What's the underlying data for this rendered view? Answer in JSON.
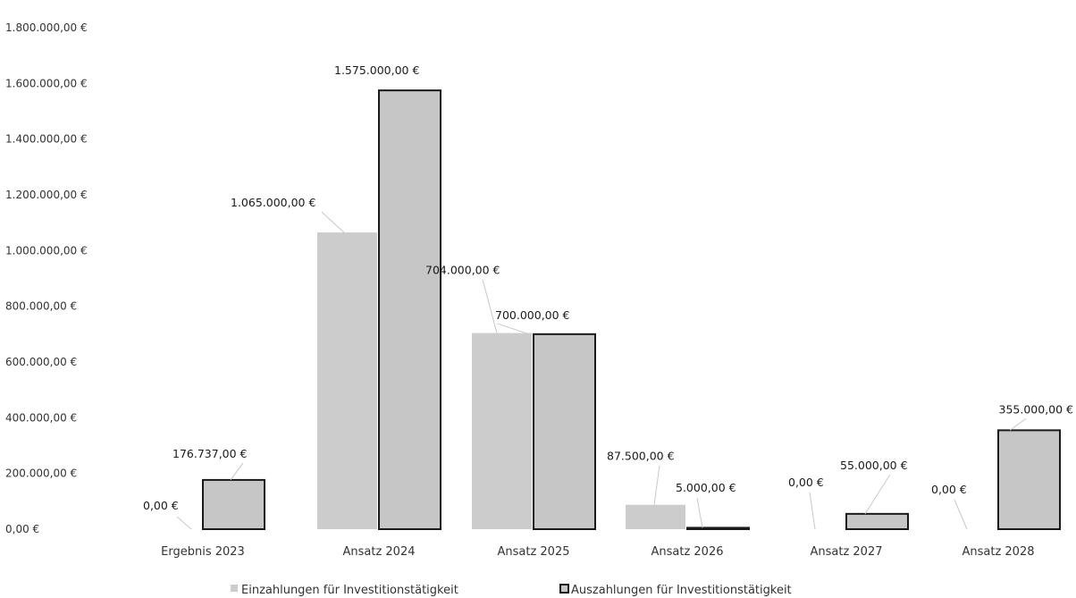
{
  "chart_data": {
    "type": "bar",
    "categories": [
      "Ergebnis 2023",
      "Ansatz 2024",
      "Ansatz 2025",
      "Ansatz 2026",
      "Ansatz 2027",
      "Ansatz 2028"
    ],
    "series": [
      {
        "name": "Einzahlungen für Investitionstätigkeit",
        "values": [
          0,
          1065000,
          704000,
          87500,
          0,
          0
        ],
        "labels": [
          "0,00 €",
          "1.065.000,00 €",
          "704.000,00 €",
          "87.500,00 €",
          "0,00 €",
          "0,00 €"
        ],
        "color": "#cccccc",
        "outline": false
      },
      {
        "name": "Auszahlungen für Investitionstätigkeit",
        "values": [
          176737,
          1575000,
          700000,
          5000,
          55000,
          355000
        ],
        "labels": [
          "176.737,00 €",
          "1.575.000,00 €",
          "700.000,00 €",
          "5.000,00 €",
          "55.000,00 €",
          "355.000,00 €"
        ],
        "color": "#c6c6c6",
        "outline": true,
        "outline_color": "#1a1a1a"
      }
    ],
    "yticks": [
      0,
      200000,
      400000,
      600000,
      800000,
      1000000,
      1200000,
      1400000,
      1600000,
      1800000
    ],
    "ytick_labels": [
      "0,00 €",
      "200.000,00 €",
      "400.000,00 €",
      "600.000,00 €",
      "800.000,00 €",
      "1.000.000,00 €",
      "1.200.000,00 €",
      "1.400.000,00 €",
      "1.600.000,00 €",
      "1.800.000,00 €"
    ],
    "ylim": [
      0,
      1800000
    ],
    "grid": false,
    "legend_position": "bottom",
    "title": "",
    "xlabel": "",
    "ylabel": ""
  }
}
